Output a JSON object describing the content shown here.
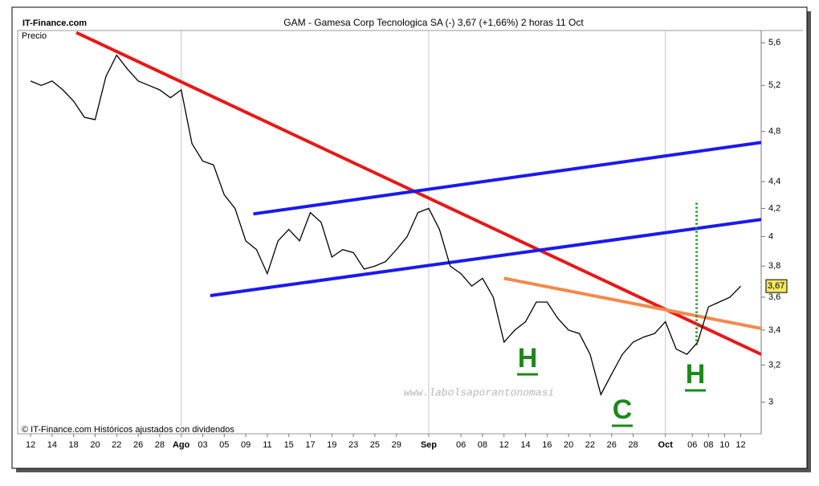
{
  "chart_data": {
    "type": "line",
    "brand": "IT-Finance.com",
    "title": "GAM - Gamesa Corp Tecnologica SA (-)   3,67 (+1,66%)   2 horas  11 Oct",
    "ylabel": "Precio",
    "footer": "© IT-Finance.com Históricos ajustados con dividendos",
    "watermark": "www.labolsaporantonomasi",
    "last_price_label": "3,67",
    "log_scale": true,
    "ylim": [
      2.84,
      5.72
    ],
    "yticks": [
      3,
      {
        "value": 3.2,
        "label": "3,2"
      },
      {
        "value": 3.4,
        "label": "3,4"
      },
      {
        "value": 3.6,
        "label": "3,6"
      },
      {
        "value": 3.8,
        "label": "3,8"
      },
      4,
      {
        "value": 4.2,
        "label": "4,2"
      },
      {
        "value": 4.4,
        "label": "4,4"
      },
      {
        "value": 4.8,
        "label": "4,8"
      },
      {
        "value": 5.2,
        "label": "5,2"
      },
      {
        "value": 5.6,
        "label": "5,6"
      }
    ],
    "xlim": [
      -1.2,
      67.9
    ],
    "xticks": [
      {
        "value": 0,
        "label": "12"
      },
      {
        "value": 2,
        "label": "14"
      },
      {
        "value": 4,
        "label": "18"
      },
      {
        "value": 6,
        "label": "20"
      },
      {
        "value": 8,
        "label": "22"
      },
      {
        "value": 10,
        "label": "26"
      },
      {
        "value": 12,
        "label": "28"
      },
      {
        "value": 14,
        "label": "Ago"
      },
      {
        "value": 16,
        "label": "03"
      },
      {
        "value": 18,
        "label": "05"
      },
      {
        "value": 20,
        "label": "09"
      },
      {
        "value": 22,
        "label": "11"
      },
      {
        "value": 24,
        "label": "15"
      },
      {
        "value": 26,
        "label": "17"
      },
      {
        "value": 28,
        "label": "19"
      },
      {
        "value": 30,
        "label": "23"
      },
      {
        "value": 32,
        "label": "25"
      },
      {
        "value": 34,
        "label": "29"
      },
      {
        "value": 37,
        "label": "Sep"
      },
      {
        "value": 40,
        "label": "06"
      },
      {
        "value": 42,
        "label": "08"
      },
      {
        "value": 44,
        "label": "12"
      },
      {
        "value": 46,
        "label": "14"
      },
      {
        "value": 48,
        "label": "16"
      },
      {
        "value": 50,
        "label": "20"
      },
      {
        "value": 52,
        "label": "22"
      },
      {
        "value": 54,
        "label": "26"
      },
      {
        "value": 56,
        "label": "28"
      },
      {
        "value": 59,
        "label": "Oct"
      },
      {
        "value": 61.5,
        "label": "06"
      },
      {
        "value": 63,
        "label": "08"
      },
      {
        "value": 64.5,
        "label": "10"
      },
      {
        "value": 66,
        "label": "12"
      }
    ],
    "grid_ticks": [
      14,
      37,
      59
    ],
    "series": [
      {
        "name": "GAM",
        "color": "#000000",
        "x": [
          0,
          1,
          2,
          3,
          4,
          5,
          6,
          7,
          8,
          9,
          10,
          11,
          12,
          13,
          14,
          15,
          16,
          17,
          18,
          19,
          20,
          21,
          22,
          23,
          24,
          25,
          26,
          27,
          28,
          29,
          30,
          31,
          32,
          33,
          34,
          35,
          36,
          37,
          38,
          39,
          40,
          41,
          42,
          43,
          44,
          45,
          46,
          47,
          48,
          49,
          50,
          51,
          52,
          53,
          54,
          55,
          56,
          57,
          58,
          59,
          60,
          61,
          62,
          63,
          64,
          65,
          66
        ],
        "values": [
          5.24,
          5.2,
          5.24,
          5.16,
          5.06,
          4.92,
          4.9,
          5.28,
          5.48,
          5.35,
          5.24,
          5.2,
          5.16,
          5.09,
          5.16,
          4.7,
          4.56,
          4.53,
          4.3,
          4.2,
          3.97,
          3.91,
          3.75,
          3.97,
          4.05,
          3.97,
          4.17,
          4.1,
          3.86,
          3.91,
          3.89,
          3.78,
          3.8,
          3.83,
          3.91,
          4.0,
          4.17,
          4.2,
          4.05,
          3.8,
          3.75,
          3.67,
          3.72,
          3.6,
          3.33,
          3.4,
          3.45,
          3.57,
          3.57,
          3.47,
          3.4,
          3.38,
          3.26,
          3.04,
          3.15,
          3.26,
          3.33,
          3.36,
          3.38,
          3.45,
          3.29,
          3.26,
          3.33,
          3.54,
          3.57,
          3.6,
          3.67
        ]
      }
    ],
    "trendlines": [
      {
        "color": "#e81818",
        "x": [
          4.25,
          67.9
        ],
        "values": [
          5.7,
          3.26
        ]
      },
      {
        "color": "#1a1aee",
        "x": [
          20.7,
          67.9
        ],
        "values": [
          4.16,
          4.71
        ]
      },
      {
        "color": "#1a1aee",
        "x": [
          16.7,
          67.9
        ],
        "values": [
          3.61,
          4.12
        ]
      },
      {
        "color": "#f5894a",
        "x": [
          44,
          67.9
        ],
        "values": [
          3.72,
          3.41
        ]
      }
    ],
    "target_line": {
      "color": "#1a8a1a",
      "x": [
        61.9,
        61.9
      ],
      "values": [
        4.24,
        3.3
      ]
    },
    "annotations": [
      "H",
      "C",
      "H"
    ]
  }
}
